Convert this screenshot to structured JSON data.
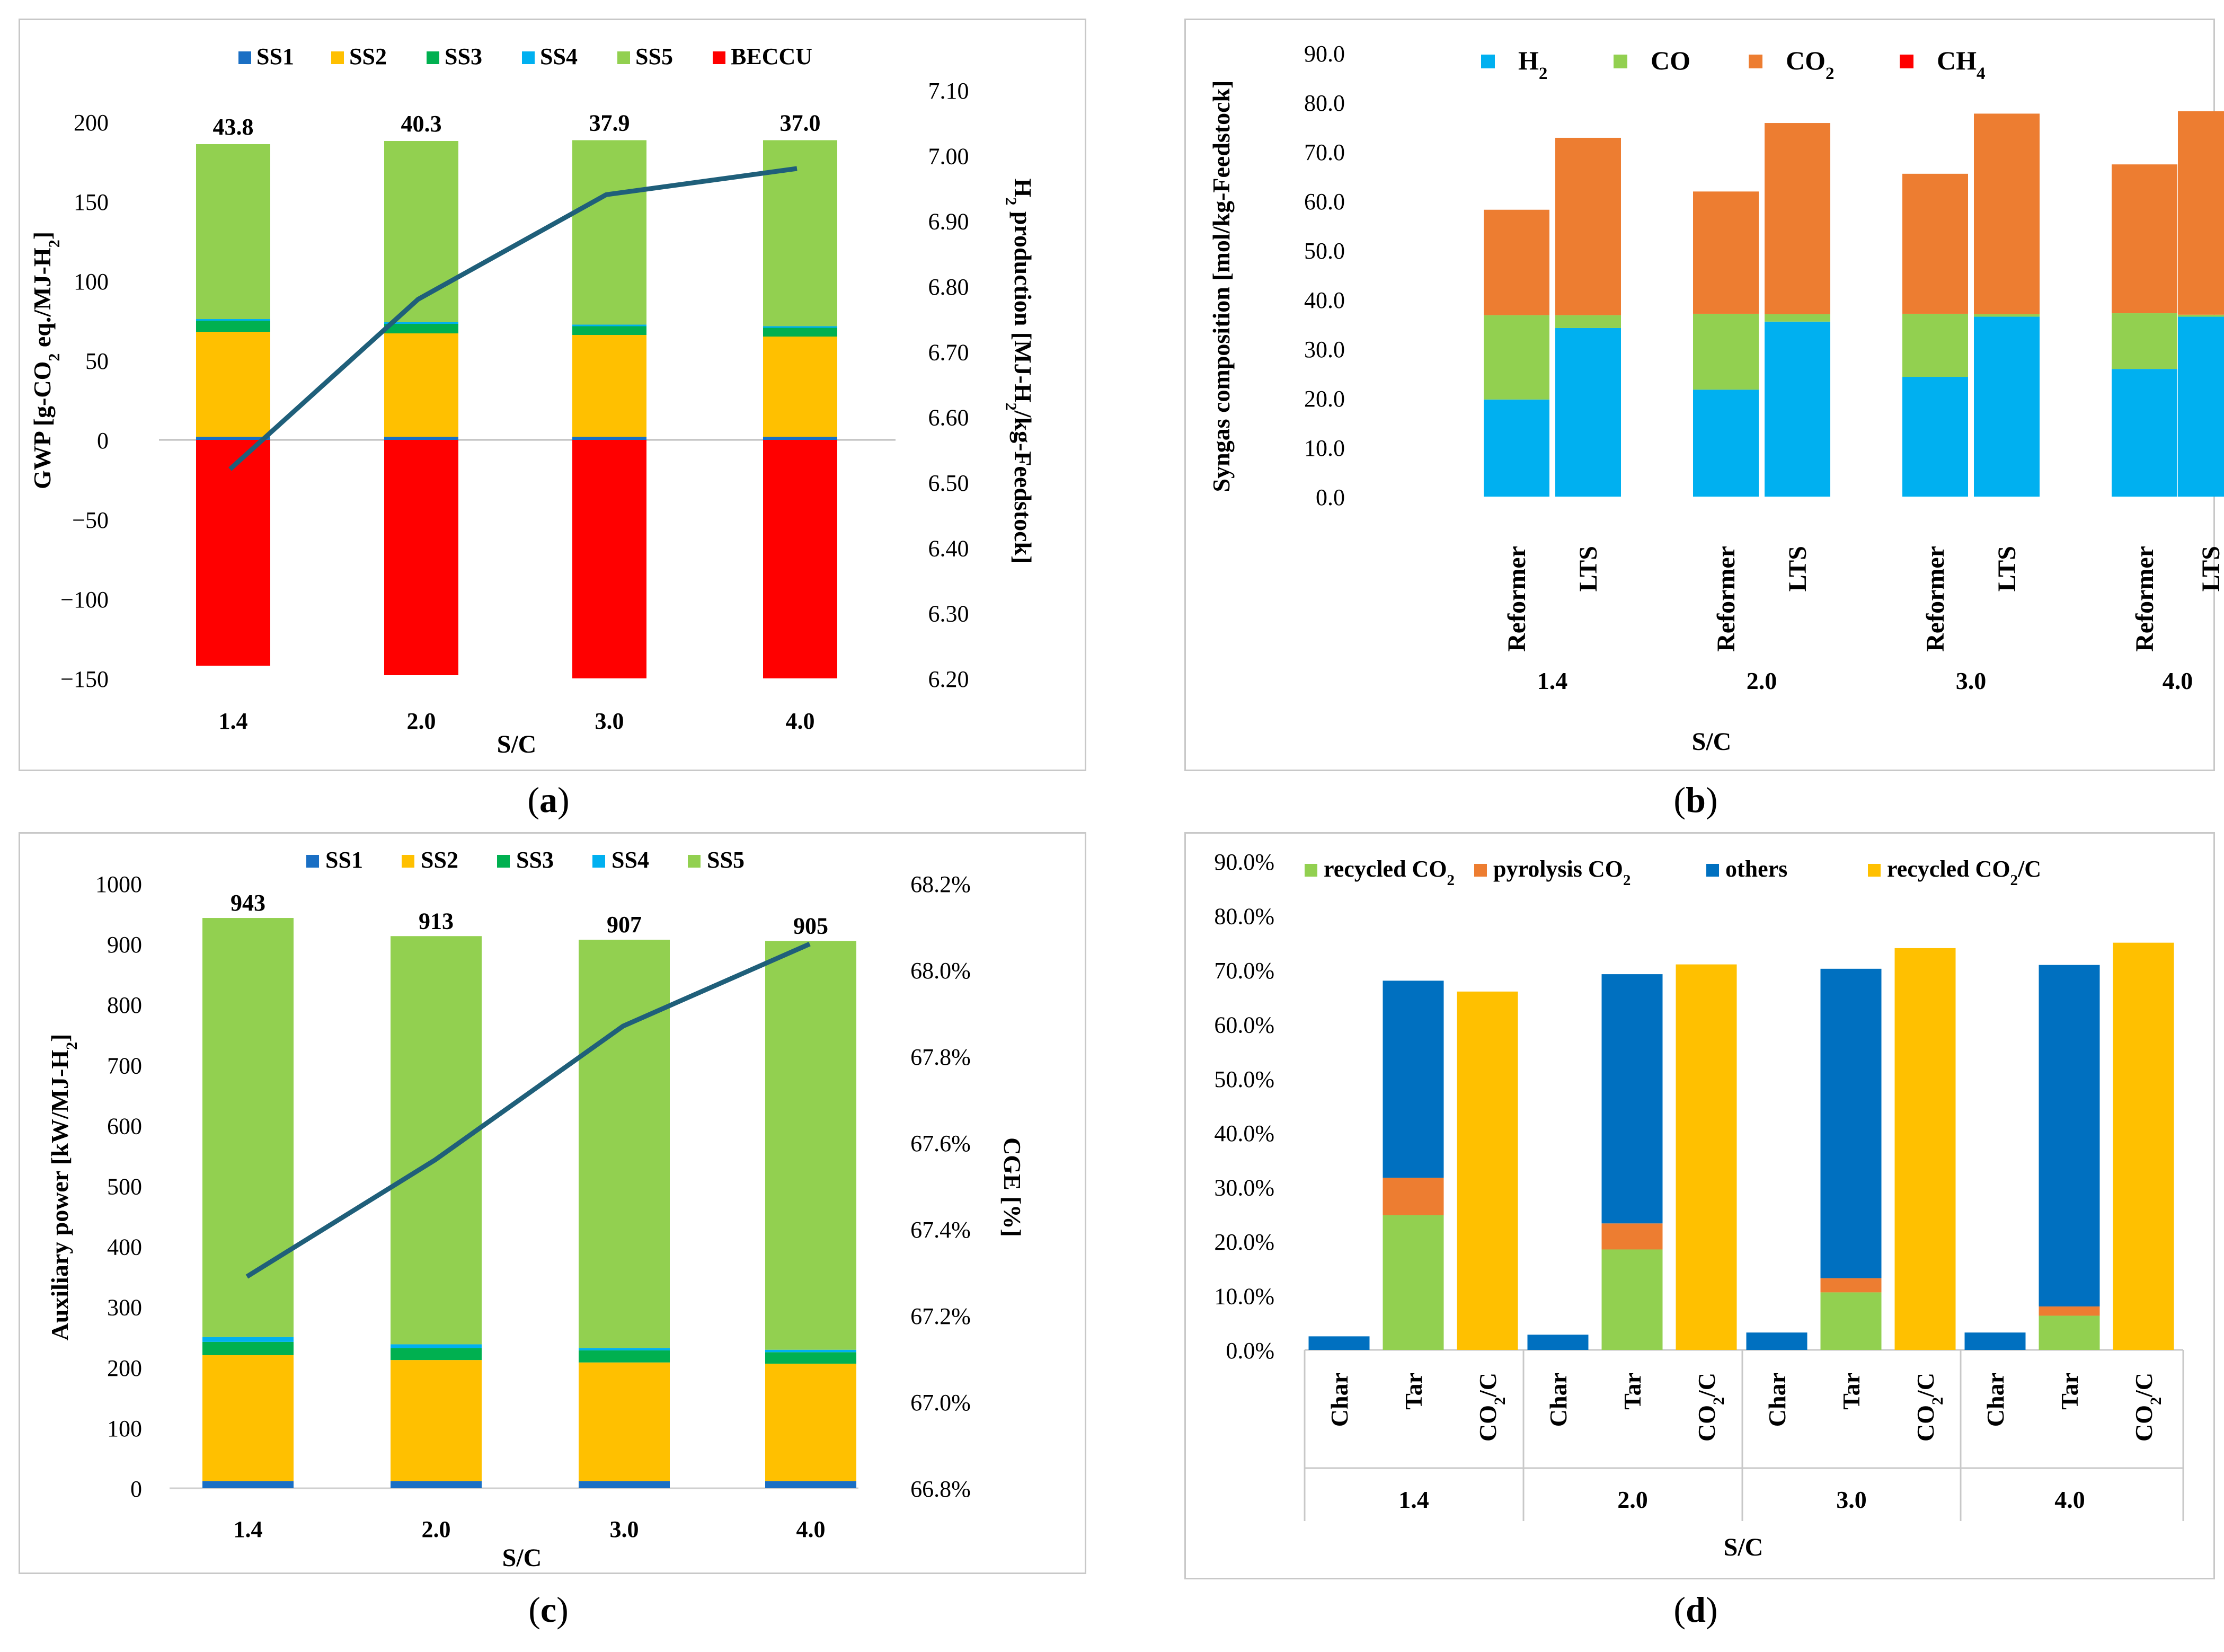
{
  "colors": {
    "SS1": "#1a6fc4",
    "SS2": "#ffc000",
    "SS3": "#00b050",
    "SS4": "#00b0f0",
    "SS5": "#92d050",
    "BECCU": "#ff0000",
    "line": "#1f5f7a",
    "H2": "#00b0f0",
    "CO": "#92d050",
    "CO2": "#ed7d31",
    "CH4": "#ff0000",
    "recycled_co2": "#92d050",
    "pyrolysis_co2": "#ed7d31",
    "others": "#0070c0",
    "recycled_co2_c": "#ffc000"
  },
  "captions": {
    "a": "a",
    "b": "b",
    "c": "c",
    "d": "d"
  },
  "chart_data": [
    {
      "id": "a",
      "type": "bar",
      "stacked": true,
      "xlabel": "S/C",
      "ylabel": "GWP [g-CO2 eq./MJ-H2]",
      "y2label": "H2 production [MJ-H2/kg-Feedstock]",
      "categories": [
        "1.4",
        "2.0",
        "3.0",
        "4.0"
      ],
      "ylim": [
        -150,
        200
      ],
      "yticks": [
        -150,
        -100,
        -50,
        0,
        50,
        100,
        150,
        200
      ],
      "ytick_labels": [
        "−150",
        "−100",
        "−50",
        "0",
        "50",
        "100",
        "150",
        "200"
      ],
      "y2lim": [
        6.2,
        7.1
      ],
      "y2ticks": [
        "6.20",
        "6.30",
        "6.40",
        "6.50",
        "6.60",
        "6.70",
        "6.80",
        "6.90",
        "7.00",
        "7.10"
      ],
      "legend": [
        "SS1",
        "SS2",
        "SS3",
        "SS4",
        "SS5",
        "BECCU"
      ],
      "series": [
        {
          "name": "SS1",
          "values": [
            2,
            2,
            2,
            2
          ]
        },
        {
          "name": "SS2",
          "values": [
            66,
            65,
            64,
            63
          ]
        },
        {
          "name": "SS3",
          "values": [
            7,
            6,
            5.5,
            5.5
          ]
        },
        {
          "name": "SS4",
          "values": [
            1,
            1,
            1,
            1
          ]
        },
        {
          "name": "SS5",
          "values": [
            110,
            114,
            116,
            117
          ]
        },
        {
          "name": "BECCU",
          "values": [
            -142,
            -148,
            -150,
            -150
          ]
        }
      ],
      "totals": [
        "43.8",
        "40.3",
        "37.9",
        "37.0"
      ],
      "line": {
        "name": "H2 production",
        "axis": "right",
        "values": [
          6.52,
          6.78,
          6.94,
          6.98
        ]
      }
    },
    {
      "id": "b",
      "type": "bar",
      "stacked": true,
      "xlabel": "S/C",
      "ylabel": "Syngas composition [mol/kg-Feedstock]",
      "groups": [
        "1.4",
        "2.0",
        "3.0",
        "4.0"
      ],
      "subcategories": [
        "Reformer",
        "LTS"
      ],
      "ylim": [
        0,
        90
      ],
      "yticks": [
        "0.0",
        "10.0",
        "20.0",
        "30.0",
        "40.0",
        "50.0",
        "60.0",
        "70.0",
        "80.0",
        "90.0"
      ],
      "legend": [
        "H2",
        "CO",
        "CO2",
        "CH4"
      ],
      "series": [
        {
          "name": "H2",
          "values": [
            19.7,
            34.2,
            21.7,
            35.5,
            24.3,
            36.5,
            25.9,
            36.5
          ]
        },
        {
          "name": "CO",
          "values": [
            17.1,
            2.6,
            15.4,
            1.5,
            12.8,
            0.5,
            11.3,
            0.4
          ]
        },
        {
          "name": "CO2",
          "values": [
            21.4,
            36.0,
            24.8,
            38.8,
            28.4,
            40.7,
            30.2,
            41.3
          ]
        },
        {
          "name": "CH4",
          "values": [
            0,
            0,
            0,
            0,
            0,
            0,
            0,
            0
          ]
        }
      ]
    },
    {
      "id": "c",
      "type": "bar",
      "stacked": true,
      "xlabel": "S/C",
      "ylabel": "Auxiliary power [kW/MJ-H2]",
      "y2label": "CGE [%]",
      "categories": [
        "1.4",
        "2.0",
        "3.0",
        "4.0"
      ],
      "ylim": [
        0,
        1000
      ],
      "yticks": [
        "0",
        "100",
        "200",
        "300",
        "400",
        "500",
        "600",
        "700",
        "800",
        "900",
        "1000"
      ],
      "y2lim": [
        66.8,
        68.2
      ],
      "y2ticks": [
        "66.8%",
        "67.0%",
        "67.2%",
        "67.4%",
        "67.6%",
        "67.8%",
        "68.0%",
        "68.2%"
      ],
      "legend": [
        "SS1",
        "SS2",
        "SS3",
        "SS4",
        "SS5"
      ],
      "series": [
        {
          "name": "SS1",
          "values": [
            12,
            12,
            12,
            12
          ]
        },
        {
          "name": "SS2",
          "values": [
            208,
            200,
            196,
            194
          ]
        },
        {
          "name": "SS3",
          "values": [
            22,
            20,
            20,
            19
          ]
        },
        {
          "name": "SS4",
          "values": [
            8,
            6,
            4,
            4
          ]
        },
        {
          "name": "SS5",
          "values": [
            693,
            675,
            675,
            676
          ]
        }
      ],
      "totals": [
        "943",
        "913",
        "907",
        "905"
      ],
      "line": {
        "name": "CGE",
        "axis": "right",
        "values": [
          67.29,
          67.56,
          67.87,
          68.06
        ]
      }
    },
    {
      "id": "d",
      "type": "bar",
      "stacked": true,
      "xlabel": "S/C",
      "groups": [
        "1.4",
        "2.0",
        "3.0",
        "4.0"
      ],
      "subcategories": [
        "Char",
        "Tar",
        "CO2/C"
      ],
      "ylim": [
        0,
        90
      ],
      "yticks": [
        "0.0%",
        "10.0%",
        "20.0%",
        "30.0%",
        "40.0%",
        "50.0%",
        "60.0%",
        "70.0%",
        "80.0%",
        "90.0%"
      ],
      "legend": [
        "recycled CO2",
        "pyrolysis CO2",
        "others",
        "recycled CO2/C"
      ],
      "series": [
        {
          "name": "recycled CO2",
          "values": [
            0,
            24.8,
            0,
            0,
            18.5,
            0,
            0,
            10.6,
            0,
            0,
            6.3,
            0
          ]
        },
        {
          "name": "pyrolysis CO2",
          "values": [
            0,
            6.9,
            0,
            0,
            4.8,
            0,
            0,
            2.6,
            0,
            0,
            1.7,
            0
          ]
        },
        {
          "name": "others",
          "values": [
            2.5,
            36.3,
            0,
            2.8,
            45.9,
            0,
            3.2,
            57.0,
            0,
            3.2,
            62.9,
            0
          ]
        },
        {
          "name": "recycled CO2/C",
          "values": [
            0,
            0,
            66.0,
            0,
            0,
            71.0,
            0,
            0,
            74.0,
            0,
            0,
            75.0
          ]
        }
      ]
    }
  ]
}
